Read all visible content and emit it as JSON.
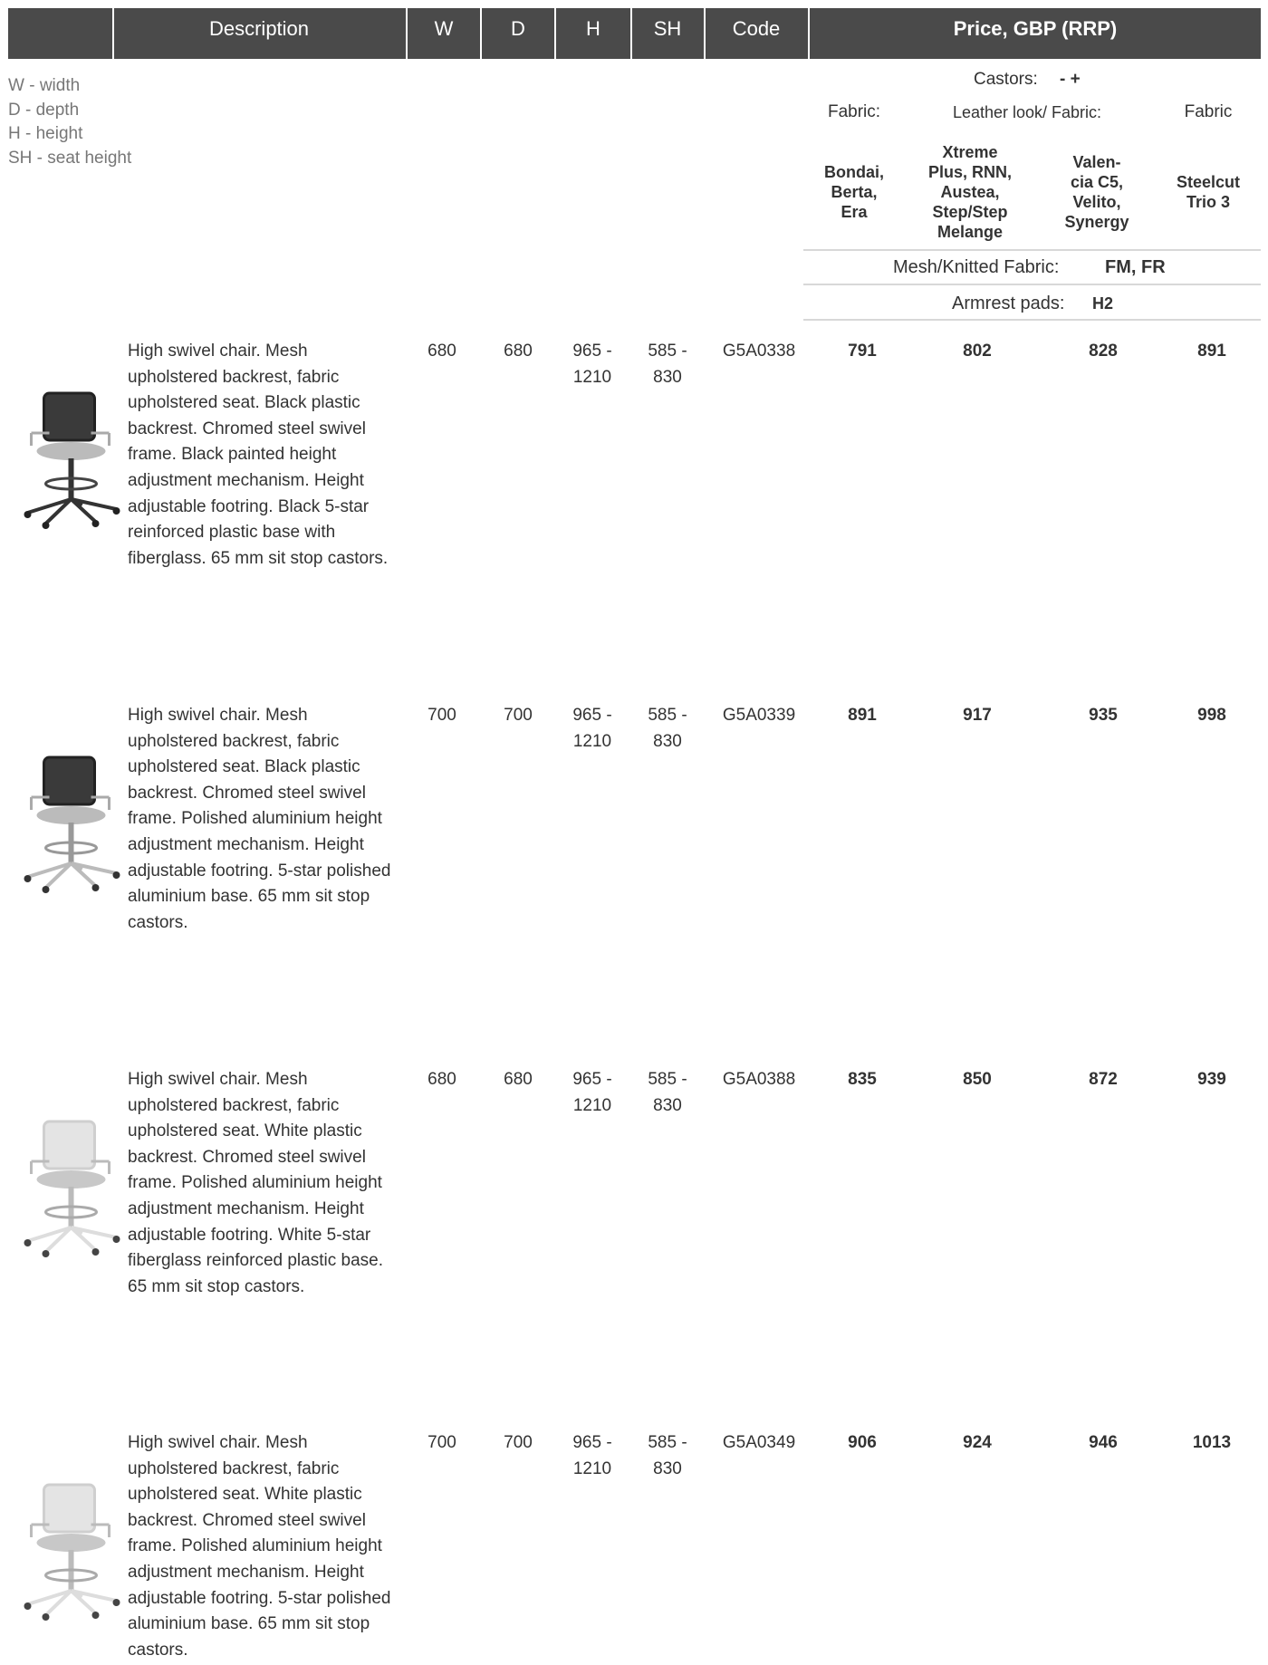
{
  "header": {
    "columns": [
      "Description",
      "W",
      "D",
      "H",
      "SH",
      "Code",
      "Price, GBP (RRP)"
    ]
  },
  "legend": [
    "W - width",
    "D - depth",
    "H - height",
    "SH - seat height"
  ],
  "price_header": {
    "castors_label": "Castors:",
    "castors_value": "- +",
    "fabric_groups": [
      "Fabric:",
      "Leather look/ Fabric:",
      "Fabric"
    ],
    "fabrics": [
      [
        "Bondai,",
        "Berta,",
        "Era"
      ],
      [
        "Xtreme",
        "Plus, RNN,",
        "Austea,",
        "Step/Step",
        "Melange"
      ],
      [
        "Valen-",
        "cia C5,",
        "Velito,",
        "Synergy"
      ],
      [
        "Steelcut",
        "Trio 3"
      ]
    ],
    "mesh_label": "Mesh/Knitted Fabric:",
    "mesh_value": "FM, FR",
    "armrest_label": "Armrest pads:",
    "armrest_value": "H2"
  },
  "rows": [
    {
      "description": "High swivel chair. Mesh upholstered backrest, fabric upholstered seat. Black plastic backrest. Chromed steel swivel frame. Black painted height adjustment mechanism. Height adjustable footring. Black 5-star reinforced plastic base with fiberglass.  65 mm sit stop castors.",
      "w": "680",
      "d": "680",
      "h": [
        "965 -",
        "1210"
      ],
      "sh": [
        "585 -",
        "830"
      ],
      "code": "G5A0338",
      "prices": [
        791,
        802,
        828,
        891
      ]
    },
    {
      "description": "High swivel chair. Mesh upholstered backrest, fabric upholstered seat. Black plastic backrest. Chromed steel swivel frame. Polished aluminium height adjustment mechanism. Height adjustable footring. 5-star polished aluminium base. 65 mm sit stop castors.",
      "w": "700",
      "d": "700",
      "h": [
        "965 -",
        "1210"
      ],
      "sh": [
        "585 -",
        "830"
      ],
      "code": "G5A0339",
      "prices": [
        891,
        917,
        935,
        998
      ]
    },
    {
      "description": "High swivel chair. Mesh upholstered backrest, fabric upholstered seat. White plastic backrest. Chromed steel swivel frame. Polished aluminium height adjustment mechanism. Height adjustable footring. White 5-star fiberglass reinforced plastic base. 65 mm sit stop castors.",
      "w": "680",
      "d": "680",
      "h": [
        "965 -",
        "1210"
      ],
      "sh": [
        "585 -",
        "830"
      ],
      "code": "G5A0388",
      "prices": [
        835,
        850,
        872,
        939
      ]
    },
    {
      "description": "High swivel chair. Mesh upholstered backrest, fabric upholstered seat. White plastic backrest. Chromed steel swivel frame. Polished aluminium height adjustment mechanism. Height adjustable footring. 5-star polished aluminium base. 65 mm sit stop castors.",
      "w": "700",
      "d": "700",
      "h": [
        "965 -",
        "1210"
      ],
      "sh": [
        "585 -",
        "830"
      ],
      "code": "G5A0349",
      "prices": [
        906,
        924,
        946,
        1013
      ]
    }
  ]
}
